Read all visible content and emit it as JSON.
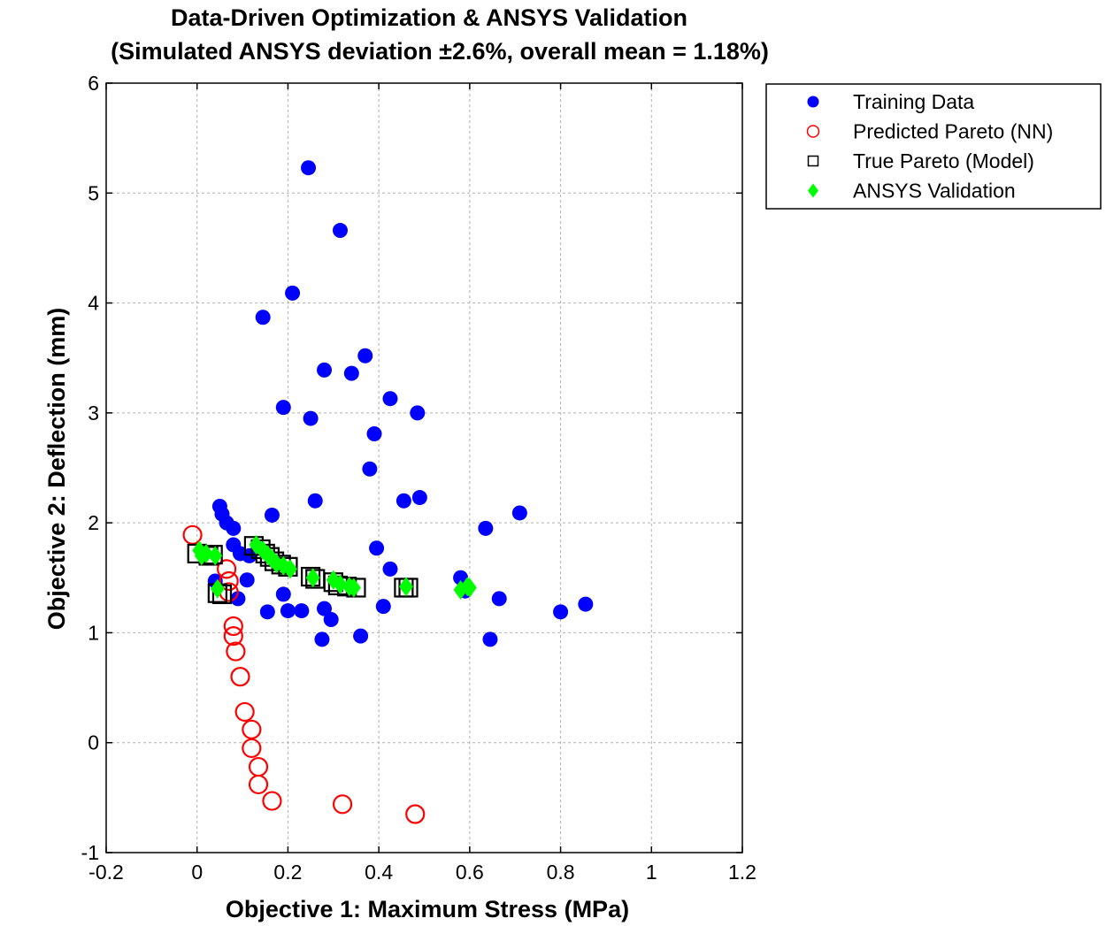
{
  "chart_data": {
    "type": "scatter",
    "title": "Data-Driven Optimization & ANSYS Validation",
    "subtitle": "(Simulated ANSYS deviation ±2.6%, overall mean = 1.18%)",
    "xlabel": "Objective 1: Maximum Stress (MPa)",
    "ylabel": "Objective 2: Deflection (mm)",
    "xlim": [
      -0.2,
      1.2
    ],
    "ylim": [
      -1,
      6
    ],
    "xticks": [
      -0.2,
      0,
      0.2,
      0.4,
      0.6,
      0.8,
      1,
      1.2
    ],
    "xtick_labels": [
      "-0.2",
      "0",
      "0.2",
      "0.4",
      "0.6",
      "0.8",
      "1",
      "1.2"
    ],
    "yticks": [
      -1,
      0,
      1,
      2,
      3,
      4,
      5,
      6
    ],
    "ytick_labels": [
      "-1",
      "0",
      "1",
      "2",
      "3",
      "4",
      "5",
      "6"
    ],
    "grid": true,
    "legend_position": "outside-right-top",
    "series": [
      {
        "name": "Training Data",
        "marker": "filled-circle",
        "color": "#0000ff",
        "points": [
          [
            0.245,
            5.23
          ],
          [
            0.315,
            4.66
          ],
          [
            0.21,
            4.09
          ],
          [
            0.145,
            3.87
          ],
          [
            0.37,
            3.52
          ],
          [
            0.28,
            3.39
          ],
          [
            0.34,
            3.36
          ],
          [
            0.425,
            3.13
          ],
          [
            0.19,
            3.05
          ],
          [
            0.25,
            2.95
          ],
          [
            0.485,
            3.0
          ],
          [
            0.39,
            2.81
          ],
          [
            0.38,
            2.49
          ],
          [
            0.26,
            2.2
          ],
          [
            0.455,
            2.2
          ],
          [
            0.49,
            2.23
          ],
          [
            0.05,
            2.15
          ],
          [
            0.165,
            2.07
          ],
          [
            0.055,
            2.08
          ],
          [
            0.065,
            2.0
          ],
          [
            0.08,
            1.95
          ],
          [
            0.71,
            2.09
          ],
          [
            0.635,
            1.95
          ],
          [
            0.08,
            1.8
          ],
          [
            0.395,
            1.77
          ],
          [
            0.095,
            1.72
          ],
          [
            0.115,
            1.7
          ],
          [
            0.425,
            1.58
          ],
          [
            0.04,
            1.47
          ],
          [
            0.11,
            1.48
          ],
          [
            0.58,
            1.5
          ],
          [
            0.59,
            1.38
          ],
          [
            0.19,
            1.35
          ],
          [
            0.09,
            1.31
          ],
          [
            0.155,
            1.19
          ],
          [
            0.2,
            1.2
          ],
          [
            0.23,
            1.2
          ],
          [
            0.28,
            1.22
          ],
          [
            0.41,
            1.24
          ],
          [
            0.665,
            1.31
          ],
          [
            0.8,
            1.19
          ],
          [
            0.855,
            1.26
          ],
          [
            0.295,
            1.12
          ],
          [
            0.275,
            0.94
          ],
          [
            0.36,
            0.97
          ],
          [
            0.645,
            0.94
          ]
        ]
      },
      {
        "name": "Predicted Pareto (NN)",
        "marker": "open-circle",
        "color": "#ff0000",
        "points": [
          [
            -0.01,
            1.89
          ],
          [
            0.065,
            1.58
          ],
          [
            0.07,
            1.47
          ],
          [
            0.07,
            1.37
          ],
          [
            0.08,
            1.06
          ],
          [
            0.08,
            0.97
          ],
          [
            0.085,
            0.83
          ],
          [
            0.095,
            0.6
          ],
          [
            0.105,
            0.28
          ],
          [
            0.12,
            0.12
          ],
          [
            0.12,
            -0.05
          ],
          [
            0.135,
            -0.22
          ],
          [
            0.135,
            -0.38
          ],
          [
            0.165,
            -0.53
          ],
          [
            0.32,
            -0.56
          ],
          [
            0.48,
            -0.65
          ]
        ]
      },
      {
        "name": "True Pareto (Model)",
        "marker": "open-square",
        "color": "#000000",
        "points": [
          [
            0.0,
            1.72
          ],
          [
            0.025,
            1.7
          ],
          [
            0.035,
            1.71
          ],
          [
            0.045,
            1.36
          ],
          [
            0.055,
            1.35
          ],
          [
            0.125,
            1.79
          ],
          [
            0.14,
            1.76
          ],
          [
            0.15,
            1.72
          ],
          [
            0.16,
            1.69
          ],
          [
            0.17,
            1.65
          ],
          [
            0.185,
            1.62
          ],
          [
            0.2,
            1.6
          ],
          [
            0.25,
            1.51
          ],
          [
            0.26,
            1.49
          ],
          [
            0.3,
            1.46
          ],
          [
            0.31,
            1.43
          ],
          [
            0.33,
            1.42
          ],
          [
            0.35,
            1.41
          ],
          [
            0.455,
            1.41
          ],
          [
            0.465,
            1.41
          ]
        ]
      },
      {
        "name": "ANSYS Validation",
        "marker": "filled-diamond",
        "color": "#00ff00",
        "points": [
          [
            0.005,
            1.75
          ],
          [
            0.01,
            1.7
          ],
          [
            0.02,
            1.72
          ],
          [
            0.04,
            1.7
          ],
          [
            0.045,
            1.4
          ],
          [
            0.13,
            1.8
          ],
          [
            0.145,
            1.75
          ],
          [
            0.155,
            1.71
          ],
          [
            0.165,
            1.67
          ],
          [
            0.175,
            1.63
          ],
          [
            0.19,
            1.61
          ],
          [
            0.205,
            1.58
          ],
          [
            0.255,
            1.5
          ],
          [
            0.3,
            1.48
          ],
          [
            0.315,
            1.44
          ],
          [
            0.335,
            1.42
          ],
          [
            0.345,
            1.41
          ],
          [
            0.46,
            1.42
          ],
          [
            0.58,
            1.39
          ],
          [
            0.595,
            1.42
          ],
          [
            0.6,
            1.41
          ]
        ]
      }
    ]
  }
}
